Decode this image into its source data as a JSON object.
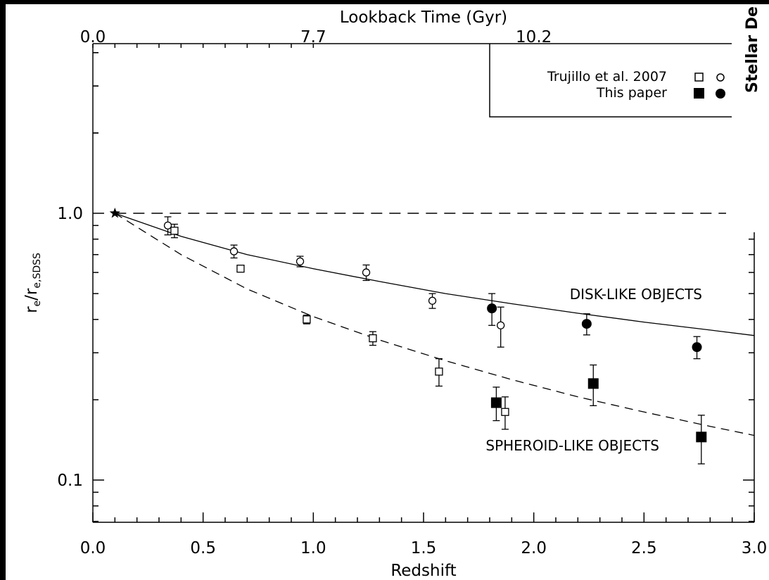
{
  "chart_data": {
    "type": "scatter",
    "xlabel": "Redshift",
    "ylabel": "r_e/r_e,SDSS",
    "ylabel_main": "r",
    "ylabel_sub1": "e",
    "ylabel_slash": "/r",
    "ylabel_sub2": "e,SDSS",
    "top_xlabel": "Lookback Time (Gyr)",
    "xlim": [
      0.0,
      3.0
    ],
    "ylim": [
      0.075,
      5.5
    ],
    "yscale": "log",
    "grid": false,
    "x_tick_labels": [
      "0.0",
      "0.5",
      "1.0",
      "1.5",
      "2.0",
      "2.5",
      "3.0"
    ],
    "x_ticks": [
      0.0,
      0.5,
      1.0,
      1.5,
      2.0,
      2.5,
      3.0
    ],
    "y_tick_labels": [
      "0.1",
      "1.0"
    ],
    "y_ticks": [
      0.1,
      1.0
    ],
    "top_tick_labels": [
      "0.0",
      "7.7",
      "10.2"
    ],
    "top_ticks_at_redshift": [
      0.0,
      1.0,
      2.0
    ],
    "reference_star": {
      "x": 0.1,
      "y": 1.0
    },
    "reference_line_y": 1.0,
    "series": [
      {
        "name": "",
        "marker": "open-circle",
        "points": [
          {
            "x": 0.34,
            "y": 0.9,
            "err": 0.07
          },
          {
            "x": 0.64,
            "y": 0.72,
            "err": 0.04
          },
          {
            "x": 0.94,
            "y": 0.66,
            "err": 0.03
          },
          {
            "x": 1.24,
            "y": 0.6,
            "err": 0.04
          },
          {
            "x": 1.54,
            "y": 0.47,
            "err": 0.03
          },
          {
            "x": 1.85,
            "y": 0.38,
            "err": 0.065
          }
        ]
      },
      {
        "name": "",
        "marker": "open-square",
        "points": [
          {
            "x": 0.37,
            "y": 0.86,
            "err": 0.05
          },
          {
            "x": 0.67,
            "y": 0.62,
            "err": 0.015
          },
          {
            "x": 0.97,
            "y": 0.4,
            "err": 0.015
          },
          {
            "x": 1.27,
            "y": 0.34,
            "err": 0.02
          },
          {
            "x": 1.57,
            "y": 0.255,
            "err": 0.03
          },
          {
            "x": 1.87,
            "y": 0.18,
            "err": 0.025
          }
        ]
      },
      {
        "name": "",
        "marker": "filled-circle",
        "points": [
          {
            "x": 1.81,
            "y": 0.44,
            "err": 0.06
          },
          {
            "x": 2.24,
            "y": 0.385,
            "err": 0.035
          },
          {
            "x": 2.74,
            "y": 0.315,
            "err": 0.03
          }
        ]
      },
      {
        "name": "",
        "marker": "filled-square",
        "points": [
          {
            "x": 1.83,
            "y": 0.195,
            "err": 0.028
          },
          {
            "x": 2.27,
            "y": 0.23,
            "err": 0.04
          },
          {
            "x": 2.76,
            "y": 0.145,
            "err": 0.03
          }
        ]
      }
    ],
    "curves": [
      {
        "label": "DISK-LIKE OBJECTS",
        "style": "solid",
        "x": [
          0.1,
          0.4,
          0.7,
          1.0,
          1.3,
          1.6,
          1.9,
          2.2,
          2.5,
          2.8,
          3.0
        ],
        "y": [
          1.0,
          0.82,
          0.7,
          0.62,
          0.555,
          0.5,
          0.458,
          0.422,
          0.391,
          0.365,
          0.348
        ]
      },
      {
        "label": "SPHEROID-LIKE OBJECTS",
        "style": "dashed",
        "x": [
          0.1,
          0.4,
          0.7,
          1.0,
          1.3,
          1.6,
          1.9,
          2.2,
          2.5,
          2.8,
          3.0
        ],
        "y": [
          1.0,
          0.7,
          0.52,
          0.41,
          0.335,
          0.28,
          0.238,
          0.205,
          0.18,
          0.159,
          0.147
        ]
      }
    ],
    "legend": {
      "placement": "top-right",
      "rows": [
        {
          "text": "Trujillo et al. 2007",
          "markers": [
            "open-square",
            "open-circle"
          ]
        },
        {
          "text": "This paper",
          "markers": [
            "filled-square",
            "filled-circle"
          ]
        }
      ]
    },
    "annotations": [
      "DISK-LIKE OBJECTS",
      "SPHEROID-LIKE OBJECTS"
    ]
  },
  "side_title": "Stellar De"
}
